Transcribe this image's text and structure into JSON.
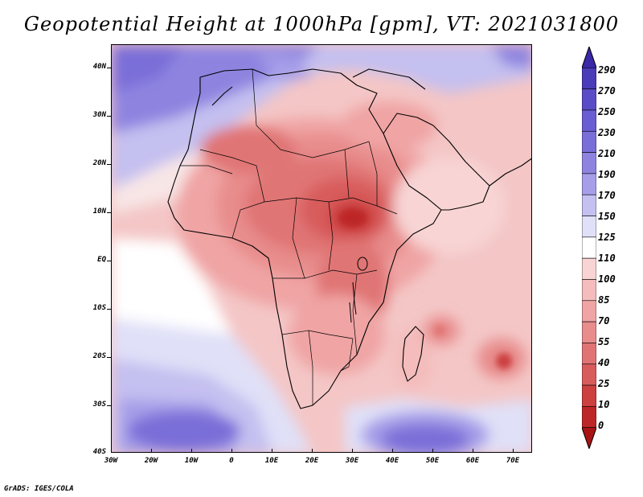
{
  "title": "Geopotential Height at 1000hPa [gpm], VT: 2021031800",
  "credit": "GrADS: IGES/COLA",
  "map": {
    "lat_labels": [
      "40N",
      "30N",
      "20N",
      "10N",
      "EQ",
      "10S",
      "20S",
      "30S",
      "40S"
    ],
    "lon_labels": [
      "30W",
      "20W",
      "10W",
      "0",
      "10E",
      "20E",
      "30E",
      "40E",
      "50E",
      "60E",
      "70E"
    ]
  },
  "colorbar": {
    "labels": [
      "290",
      "270",
      "250",
      "230",
      "210",
      "190",
      "170",
      "150",
      "125",
      "110",
      "100",
      "85",
      "70",
      "55",
      "40",
      "25",
      "10",
      "0"
    ],
    "colors": [
      "#3a28a8",
      "#4a3bb8",
      "#5a4cc6",
      "#6a5cd2",
      "#7a6ed8",
      "#8e84e0",
      "#a69ee8",
      "#c4c0f0",
      "#e0e0f8",
      "#ffffff",
      "#f8d4d4",
      "#f4bcbc",
      "#f0a4a4",
      "#e88c8c",
      "#e07474",
      "#d85c5c",
      "#cc4040",
      "#bd2626",
      "#a81414"
    ]
  },
  "colors": {
    "land_outline": "#000000",
    "strong_high": "#5a4cc6",
    "weak_low": "#f4bcbc",
    "strong_low": "#cc4040"
  }
}
